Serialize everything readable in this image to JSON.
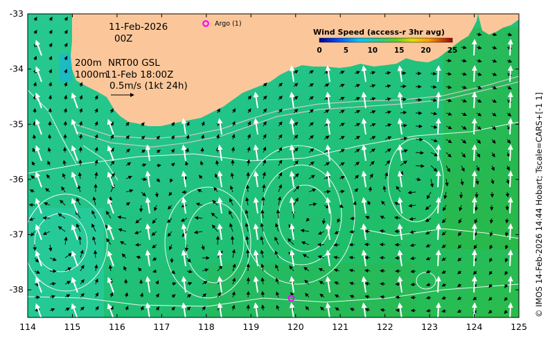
{
  "map": {
    "date_line1": "11-Feb-2026",
    "date_line2": "00Z",
    "isobath_labels": [
      "200m",
      "1000m"
    ],
    "product_line1": "NRT00 GSL",
    "product_line2": "11-Feb 18:00Z",
    "scale_arrow_label": "0.5m/s (1kt 24h)",
    "argo_label": "Argo (1)",
    "credit": "© IMOS 14-Feb-2026 14:44 Hobart; Tscale=CARS+[-1 1]",
    "colors": {
      "land": "#fbc79a",
      "argo_marker": "#ff00ff",
      "contour": "#ffffff",
      "vector": "#000000",
      "wind_arrow": "#ffffff"
    }
  },
  "colorbar": {
    "title": "Wind Speed (access-r 3hr avg)",
    "ticks": [
      "0",
      "5",
      "10",
      "15",
      "20",
      "25"
    ],
    "min": 0,
    "max": 25
  },
  "axes": {
    "x_ticks": [
      "114",
      "115",
      "116",
      "117",
      "118",
      "119",
      "120",
      "121",
      "122",
      "123",
      "124",
      "125"
    ],
    "y_ticks": [
      "-33",
      "-34",
      "-35",
      "-36",
      "-37",
      "-38"
    ],
    "xlim": [
      114,
      125
    ],
    "ylim": [
      -38.5,
      -33
    ]
  },
  "argo_floats": [
    {
      "lon": 119.9,
      "lat": -38.15
    }
  ],
  "chart_data": {
    "type": "heatmap",
    "title": "",
    "xlabel": "",
    "ylabel": "",
    "xlim": [
      114,
      125
    ],
    "ylim": [
      -38.5,
      -33
    ],
    "x_ticks": [
      114,
      115,
      116,
      117,
      118,
      119,
      120,
      121,
      122,
      123,
      124,
      125
    ],
    "y_ticks": [
      -33,
      -34,
      -35,
      -36,
      -37,
      -38
    ],
    "color_scale": {
      "label": "Wind Speed (access-r 3hr avg)",
      "min": 0,
      "max": 25,
      "ticks": [
        0,
        5,
        10,
        15,
        20,
        25
      ]
    },
    "grid": false,
    "legend": "top-right",
    "points": [
      {
        "name": "Argo (1)",
        "lon": 119.9,
        "lat": -38.15
      }
    ]
  }
}
